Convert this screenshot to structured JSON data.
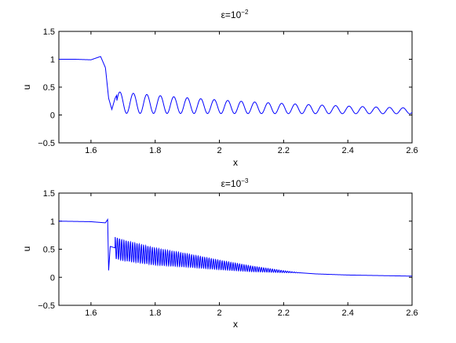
{
  "chart_data": [
    {
      "type": "line",
      "title_prefix": "ε=10",
      "title_exponent": "−2",
      "xlabel": "x",
      "ylabel": "u",
      "xlim": [
        1.5,
        2.6
      ],
      "ylim": [
        -0.5,
        1.5
      ],
      "x_ticks": [
        "1.6",
        "1.8",
        "2",
        "2.2",
        "2.4",
        "2.6"
      ],
      "x_tick_values": [
        1.6,
        1.8,
        2.0,
        2.2,
        2.4,
        2.6
      ],
      "y_ticks": [
        "−0.5",
        "0",
        "0.5",
        "1",
        "1.5"
      ],
      "y_tick_values": [
        -0.5,
        0,
        0.5,
        1,
        1.5
      ],
      "line_color": "#0000ff",
      "grid": false,
      "series": [
        {
          "x": [
            1.5,
            1.55,
            1.6,
            1.63,
            1.645,
            1.655,
            1.665,
            1.675,
            1.69,
            1.72,
            1.75,
            1.8,
            1.9,
            2.0,
            2.1,
            2.2,
            2.3,
            2.4,
            2.5,
            2.6
          ],
          "y": [
            1.0,
            1.0,
            0.99,
            1.05,
            0.85,
            0.3,
            0.1,
            0.3,
            0.46,
            0.1,
            0.4,
            0.33,
            0.27,
            0.2,
            0.15,
            0.1,
            0.07,
            0.05,
            0.04,
            0.03
          ]
        }
      ]
    },
    {
      "type": "line",
      "title_prefix": "ε=10",
      "title_exponent": "−3",
      "xlabel": "x",
      "ylabel": "u",
      "xlim": [
        1.5,
        2.6
      ],
      "ylim": [
        -0.5,
        1.5
      ],
      "x_ticks": [
        "1.6",
        "1.8",
        "2",
        "2.2",
        "2.4",
        "2.6"
      ],
      "x_tick_values": [
        1.6,
        1.8,
        2.0,
        2.2,
        2.4,
        2.6
      ],
      "y_ticks": [
        "−0.5",
        "0",
        "0.5",
        "1",
        "1.5"
      ],
      "y_tick_values": [
        -0.5,
        0,
        0.5,
        1,
        1.5
      ],
      "line_color": "#0000ff",
      "grid": false,
      "series": [
        {
          "x": [
            1.5,
            1.6,
            1.645,
            1.652,
            1.655,
            1.66,
            1.7,
            1.8,
            1.9,
            2.0,
            2.1,
            2.2,
            2.3,
            2.4,
            2.6
          ],
          "y": [
            1.0,
            0.99,
            0.97,
            1.03,
            0.12,
            0.55,
            0.48,
            0.37,
            0.3,
            0.22,
            0.15,
            0.1,
            0.06,
            0.04,
            0.02
          ]
        }
      ]
    }
  ]
}
